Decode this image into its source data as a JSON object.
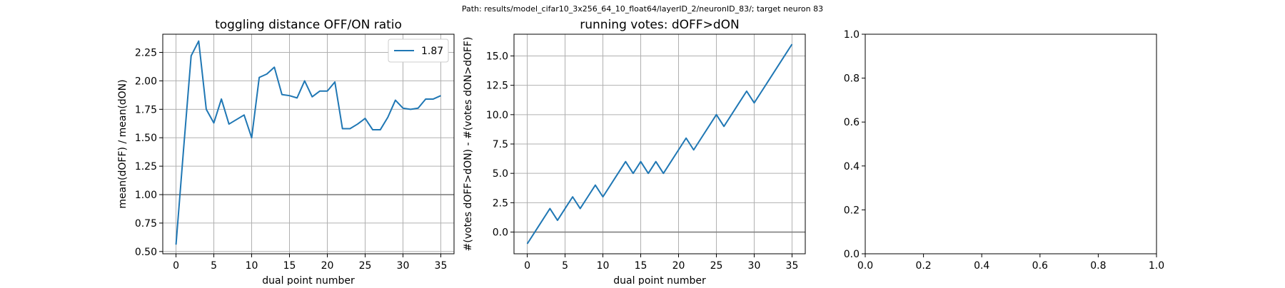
{
  "suptitle": "Path: results/model_cifar10_3x256_64_10_float64/layerID_2/neuronID_83/; target neuron 83",
  "chart_data": [
    {
      "type": "line",
      "title": "toggling distance OFF/ON ratio",
      "xlabel": "dual point number",
      "ylabel": "mean(dOFF) / mean(dON)",
      "xlim": [
        -1.75,
        36.75
      ],
      "ylim": [
        0.48,
        2.41
      ],
      "xticks": [
        "0",
        "5",
        "10",
        "15",
        "20",
        "25",
        "30",
        "35"
      ],
      "yticks": [
        "0.50",
        "0.75",
        "1.00",
        "1.25",
        "1.50",
        "1.75",
        "2.00",
        "2.25"
      ],
      "grid": true,
      "legend_position": "top-right",
      "hline": 1.0,
      "hline_color": "#808080",
      "series": [
        {
          "name": "1.87",
          "color": "#1f77b4",
          "x": [
            0,
            1,
            2,
            3,
            4,
            5,
            6,
            7,
            8,
            9,
            10,
            11,
            12,
            13,
            14,
            15,
            16,
            17,
            18,
            19,
            20,
            21,
            22,
            23,
            24,
            25,
            26,
            27,
            28,
            29,
            30,
            31,
            32,
            33,
            34,
            35
          ],
          "values": [
            0.56,
            1.4,
            2.22,
            2.35,
            1.75,
            1.63,
            1.84,
            1.62,
            1.66,
            1.7,
            1.5,
            2.03,
            2.06,
            2.12,
            1.88,
            1.87,
            1.85,
            2.0,
            1.86,
            1.91,
            1.91,
            1.99,
            1.58,
            1.58,
            1.62,
            1.67,
            1.57,
            1.57,
            1.68,
            1.83,
            1.76,
            1.75,
            1.76,
            1.84,
            1.84,
            1.87
          ]
        }
      ]
    },
    {
      "type": "line",
      "title": "running votes: dOFF>dON",
      "xlabel": "dual point number",
      "ylabel": "#(votes dOFF>dON) - #(votes dON>dOFF)",
      "xlim": [
        -1.75,
        36.75
      ],
      "ylim": [
        -1.85,
        16.85
      ],
      "xticks": [
        "0",
        "5",
        "10",
        "15",
        "20",
        "25",
        "30",
        "35"
      ],
      "yticks": [
        "0.0",
        "2.5",
        "5.0",
        "7.5",
        "10.0",
        "12.5",
        "15.0"
      ],
      "grid": true,
      "hline": 0.0,
      "hline_color": "#808080",
      "series": [
        {
          "color": "#1f77b4",
          "x": [
            0,
            1,
            2,
            3,
            4,
            5,
            6,
            7,
            8,
            9,
            10,
            11,
            12,
            13,
            14,
            15,
            16,
            17,
            18,
            19,
            20,
            21,
            22,
            23,
            24,
            25,
            26,
            27,
            28,
            29,
            30,
            31,
            32,
            33,
            34,
            35
          ],
          "values": [
            -1,
            0,
            1,
            2,
            1,
            2,
            3,
            2,
            3,
            4,
            3,
            4,
            5,
            6,
            5,
            6,
            5,
            6,
            5,
            6,
            7,
            8,
            7,
            8,
            9,
            10,
            9,
            10,
            11,
            12,
            11,
            12,
            13,
            14,
            15,
            16
          ]
        }
      ]
    },
    {
      "type": "line",
      "title": "",
      "xlabel": "",
      "ylabel": "",
      "xlim": [
        0,
        1
      ],
      "ylim": [
        0,
        1
      ],
      "xticks": [
        "0.0",
        "0.2",
        "0.4",
        "0.6",
        "0.8",
        "1.0"
      ],
      "yticks": [
        "0.0",
        "0.2",
        "0.4",
        "0.6",
        "0.8",
        "1.0"
      ],
      "grid": false,
      "series": []
    }
  ]
}
